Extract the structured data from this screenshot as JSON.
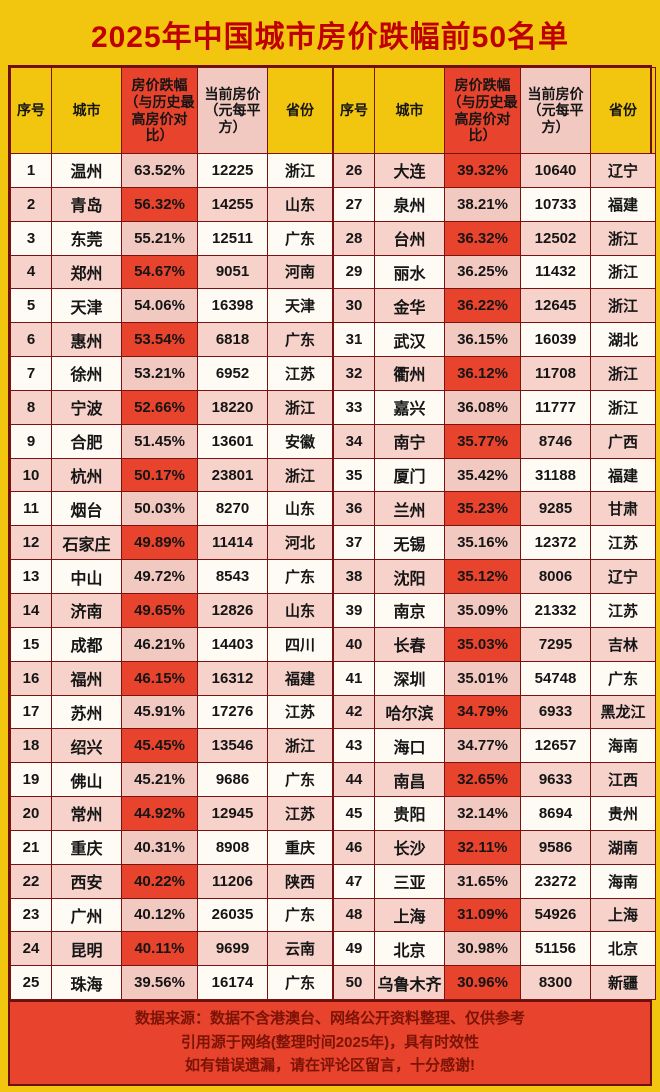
{
  "title": "2025年中国城市房价跌幅前50名单",
  "colors": {
    "page_background": "#F2C50E",
    "title_red": "#BE0000",
    "highlight_red": "#E8432C",
    "row_pink": "#F6D2CA",
    "percent_light_pink": "#F2C9C1",
    "row_white": "#FEFBF4",
    "border": "#7A1212",
    "footer_text": "#7B1306"
  },
  "table": {
    "headers": [
      "序号",
      "城市",
      "房价跌幅（与历史最高房价对比）",
      "当前房价（元每平方）",
      "省份"
    ],
    "rows": [
      [
        1,
        "温州",
        "63.52%",
        "12225",
        "浙江"
      ],
      [
        2,
        "青岛",
        "56.32%",
        "14255",
        "山东"
      ],
      [
        3,
        "东莞",
        "55.21%",
        "12511",
        "广东"
      ],
      [
        4,
        "郑州",
        "54.67%",
        "9051",
        "河南"
      ],
      [
        5,
        "天津",
        "54.06%",
        "16398",
        "天津"
      ],
      [
        6,
        "惠州",
        "53.54%",
        "6818",
        "广东"
      ],
      [
        7,
        "徐州",
        "53.21%",
        "6952",
        "江苏"
      ],
      [
        8,
        "宁波",
        "52.66%",
        "18220",
        "浙江"
      ],
      [
        9,
        "合肥",
        "51.45%",
        "13601",
        "安徽"
      ],
      [
        10,
        "杭州",
        "50.17%",
        "23801",
        "浙江"
      ],
      [
        11,
        "烟台",
        "50.03%",
        "8270",
        "山东"
      ],
      [
        12,
        "石家庄",
        "49.89%",
        "11414",
        "河北"
      ],
      [
        13,
        "中山",
        "49.72%",
        "8543",
        "广东"
      ],
      [
        14,
        "济南",
        "49.65%",
        "12826",
        "山东"
      ],
      [
        15,
        "成都",
        "46.21%",
        "14403",
        "四川"
      ],
      [
        16,
        "福州",
        "46.15%",
        "16312",
        "福建"
      ],
      [
        17,
        "苏州",
        "45.91%",
        "17276",
        "江苏"
      ],
      [
        18,
        "绍兴",
        "45.45%",
        "13546",
        "浙江"
      ],
      [
        19,
        "佛山",
        "45.21%",
        "9686",
        "广东"
      ],
      [
        20,
        "常州",
        "44.92%",
        "12945",
        "江苏"
      ],
      [
        21,
        "重庆",
        "40.31%",
        "8908",
        "重庆"
      ],
      [
        22,
        "西安",
        "40.22%",
        "11206",
        "陕西"
      ],
      [
        23,
        "广州",
        "40.12%",
        "26035",
        "广东"
      ],
      [
        24,
        "昆明",
        "40.11%",
        "9699",
        "云南"
      ],
      [
        25,
        "珠海",
        "39.56%",
        "16174",
        "广东"
      ],
      [
        26,
        "大连",
        "39.32%",
        "10640",
        "辽宁"
      ],
      [
        27,
        "泉州",
        "38.21%",
        "10733",
        "福建"
      ],
      [
        28,
        "台州",
        "36.32%",
        "12502",
        "浙江"
      ],
      [
        29,
        "丽水",
        "36.25%",
        "11432",
        "浙江"
      ],
      [
        30,
        "金华",
        "36.22%",
        "12645",
        "浙江"
      ],
      [
        31,
        "武汉",
        "36.15%",
        "16039",
        "湖北"
      ],
      [
        32,
        "衢州",
        "36.12%",
        "11708",
        "浙江"
      ],
      [
        33,
        "嘉兴",
        "36.08%",
        "11777",
        "浙江"
      ],
      [
        34,
        "南宁",
        "35.77%",
        "8746",
        "广西"
      ],
      [
        35,
        "厦门",
        "35.42%",
        "31188",
        "福建"
      ],
      [
        36,
        "兰州",
        "35.23%",
        "9285",
        "甘肃"
      ],
      [
        37,
        "无锡",
        "35.16%",
        "12372",
        "江苏"
      ],
      [
        38,
        "沈阳",
        "35.12%",
        "8006",
        "辽宁"
      ],
      [
        39,
        "南京",
        "35.09%",
        "21332",
        "江苏"
      ],
      [
        40,
        "长春",
        "35.03%",
        "7295",
        "吉林"
      ],
      [
        41,
        "深圳",
        "35.01%",
        "54748",
        "广东"
      ],
      [
        42,
        "哈尔滨",
        "34.79%",
        "6933",
        "黑龙江"
      ],
      [
        43,
        "海口",
        "34.77%",
        "12657",
        "海南"
      ],
      [
        44,
        "南昌",
        "32.65%",
        "9633",
        "江西"
      ],
      [
        45,
        "贵阳",
        "32.14%",
        "8694",
        "贵州"
      ],
      [
        46,
        "长沙",
        "32.11%",
        "9586",
        "湖南"
      ],
      [
        47,
        "三亚",
        "31.65%",
        "23272",
        "海南"
      ],
      [
        48,
        "上海",
        "31.09%",
        "54926",
        "上海"
      ],
      [
        49,
        "北京",
        "30.98%",
        "51156",
        "北京"
      ],
      [
        50,
        "乌鲁木齐",
        "30.96%",
        "8300",
        "新疆"
      ]
    ]
  },
  "footer": {
    "lines": [
      "数据来源：数据不含港澳台、网络公开资料整理、仅供参考",
      "引用源于网络(整理时间2025年)，具有时效性",
      "如有错误遗漏，请在评论区留言，十分感谢!"
    ]
  }
}
